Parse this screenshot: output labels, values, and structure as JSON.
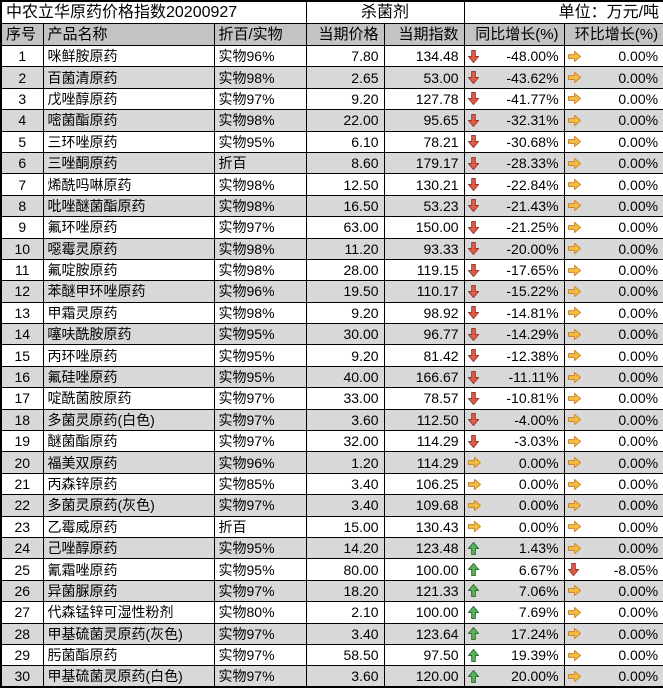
{
  "header": {
    "title": "中农立华原药价格指数20200927",
    "category": "杀菌剂",
    "unit": "单位：万元/吨"
  },
  "columns": {
    "seq": "序号",
    "name": "产品名称",
    "spec": "折百/实物",
    "price": "当期价格",
    "index": "当期指数",
    "yoy": "同比增长(%)",
    "mom": "环比增长(%)"
  },
  "icon_colors": {
    "up": {
      "fill": "#5BB05B",
      "stroke": "#2E6E33"
    },
    "down": {
      "fill": "#D95F4C",
      "stroke": "#9E352A"
    },
    "flat": {
      "fill": "#F2BE45",
      "stroke": "#C8862E"
    }
  },
  "icon_names": {
    "up": "up-arrow-icon",
    "down": "down-arrow-icon",
    "flat": "right-arrow-icon"
  },
  "rows": [
    {
      "seq": "1",
      "name": "咪鲜胺原药",
      "spec": "实物96%",
      "price": "7.80",
      "index": "134.48",
      "yoy_icon": "down",
      "yoy": "-48.00%",
      "mom_icon": "flat",
      "mom": "0.00%"
    },
    {
      "seq": "2",
      "name": "百菌清原药",
      "spec": "实物98%",
      "price": "2.65",
      "index": "53.00",
      "yoy_icon": "down",
      "yoy": "-43.62%",
      "mom_icon": "flat",
      "mom": "0.00%"
    },
    {
      "seq": "3",
      "name": "戊唑醇原药",
      "spec": "实物97%",
      "price": "9.20",
      "index": "127.78",
      "yoy_icon": "down",
      "yoy": "-41.77%",
      "mom_icon": "flat",
      "mom": "0.00%"
    },
    {
      "seq": "4",
      "name": "嘧菌酯原药",
      "spec": "实物98%",
      "price": "22.00",
      "index": "95.65",
      "yoy_icon": "down",
      "yoy": "-32.31%",
      "mom_icon": "flat",
      "mom": "0.00%"
    },
    {
      "seq": "5",
      "name": "三环唑原药",
      "spec": "实物95%",
      "price": "6.10",
      "index": "78.21",
      "yoy_icon": "down",
      "yoy": "-30.68%",
      "mom_icon": "flat",
      "mom": "0.00%"
    },
    {
      "seq": "6",
      "name": "三唑酮原药",
      "spec": "折百",
      "price": "8.60",
      "index": "179.17",
      "yoy_icon": "down",
      "yoy": "-28.33%",
      "mom_icon": "flat",
      "mom": "0.00%"
    },
    {
      "seq": "7",
      "name": "烯酰吗啉原药",
      "spec": "实物98%",
      "price": "12.50",
      "index": "130.21",
      "yoy_icon": "down",
      "yoy": "-22.84%",
      "mom_icon": "flat",
      "mom": "0.00%"
    },
    {
      "seq": "8",
      "name": "吡唑醚菌酯原药",
      "spec": "实物98%",
      "price": "16.50",
      "index": "53.23",
      "yoy_icon": "down",
      "yoy": "-21.43%",
      "mom_icon": "flat",
      "mom": "0.00%"
    },
    {
      "seq": "9",
      "name": "氟环唑原药",
      "spec": "实物97%",
      "price": "63.00",
      "index": "150.00",
      "yoy_icon": "down",
      "yoy": "-21.25%",
      "mom_icon": "flat",
      "mom": "0.00%"
    },
    {
      "seq": "10",
      "name": "噁霉灵原药",
      "spec": "实物98%",
      "price": "11.20",
      "index": "93.33",
      "yoy_icon": "down",
      "yoy": "-20.00%",
      "mom_icon": "flat",
      "mom": "0.00%"
    },
    {
      "seq": "11",
      "name": "氟啶胺原药",
      "spec": "实物98%",
      "price": "28.00",
      "index": "119.15",
      "yoy_icon": "down",
      "yoy": "-17.65%",
      "mom_icon": "flat",
      "mom": "0.00%"
    },
    {
      "seq": "12",
      "name": "苯醚甲环唑原药",
      "spec": "实物96%",
      "price": "19.50",
      "index": "110.17",
      "yoy_icon": "down",
      "yoy": "-15.22%",
      "mom_icon": "flat",
      "mom": "0.00%"
    },
    {
      "seq": "13",
      "name": "甲霜灵原药",
      "spec": "实物98%",
      "price": "9.20",
      "index": "98.92",
      "yoy_icon": "down",
      "yoy": "-14.81%",
      "mom_icon": "flat",
      "mom": "0.00%"
    },
    {
      "seq": "14",
      "name": "噻呋酰胺原药",
      "spec": "实物95%",
      "price": "30.00",
      "index": "96.77",
      "yoy_icon": "down",
      "yoy": "-14.29%",
      "mom_icon": "flat",
      "mom": "0.00%"
    },
    {
      "seq": "15",
      "name": "丙环唑原药",
      "spec": "实物95%",
      "price": "9.20",
      "index": "81.42",
      "yoy_icon": "down",
      "yoy": "-12.38%",
      "mom_icon": "flat",
      "mom": "0.00%"
    },
    {
      "seq": "16",
      "name": "氟硅唑原药",
      "spec": "实物95%",
      "price": "40.00",
      "index": "166.67",
      "yoy_icon": "down",
      "yoy": "-11.11%",
      "mom_icon": "flat",
      "mom": "0.00%"
    },
    {
      "seq": "17",
      "name": "啶酰菌胺原药",
      "spec": "实物97%",
      "price": "33.00",
      "index": "78.57",
      "yoy_icon": "down",
      "yoy": "-10.81%",
      "mom_icon": "flat",
      "mom": "0.00%"
    },
    {
      "seq": "18",
      "name": "多菌灵原药(白色)",
      "spec": "实物97%",
      "price": "3.60",
      "index": "112.50",
      "yoy_icon": "down",
      "yoy": "-4.00%",
      "mom_icon": "flat",
      "mom": "0.00%"
    },
    {
      "seq": "19",
      "name": "醚菌酯原药",
      "spec": "实物97%",
      "price": "32.00",
      "index": "114.29",
      "yoy_icon": "down",
      "yoy": "-3.03%",
      "mom_icon": "flat",
      "mom": "0.00%"
    },
    {
      "seq": "20",
      "name": "福美双原药",
      "spec": "实物96%",
      "price": "1.20",
      "index": "114.29",
      "yoy_icon": "flat",
      "yoy": "0.00%",
      "mom_icon": "flat",
      "mom": "0.00%"
    },
    {
      "seq": "21",
      "name": "丙森锌原药",
      "spec": "实物85%",
      "price": "3.40",
      "index": "106.25",
      "yoy_icon": "flat",
      "yoy": "0.00%",
      "mom_icon": "flat",
      "mom": "0.00%"
    },
    {
      "seq": "22",
      "name": "多菌灵原药(灰色)",
      "spec": "实物97%",
      "price": "3.40",
      "index": "109.68",
      "yoy_icon": "flat",
      "yoy": "0.00%",
      "mom_icon": "flat",
      "mom": "0.00%"
    },
    {
      "seq": "23",
      "name": "乙霉威原药",
      "spec": "折百",
      "price": "15.00",
      "index": "130.43",
      "yoy_icon": "flat",
      "yoy": "0.00%",
      "mom_icon": "flat",
      "mom": "0.00%"
    },
    {
      "seq": "24",
      "name": "己唑醇原药",
      "spec": "实物95%",
      "price": "14.20",
      "index": "123.48",
      "yoy_icon": "up",
      "yoy": "1.43%",
      "mom_icon": "flat",
      "mom": "0.00%"
    },
    {
      "seq": "25",
      "name": "氰霜唑原药",
      "spec": "实物95%",
      "price": "80.00",
      "index": "100.00",
      "yoy_icon": "up",
      "yoy": "6.67%",
      "mom_icon": "down",
      "mom": "-8.05%"
    },
    {
      "seq": "26",
      "name": "异菌脲原药",
      "spec": "实物97%",
      "price": "18.20",
      "index": "121.33",
      "yoy_icon": "up",
      "yoy": "7.06%",
      "mom_icon": "flat",
      "mom": "0.00%"
    },
    {
      "seq": "27",
      "name": "代森锰锌可湿性粉剂",
      "spec": "实物80%",
      "price": "2.10",
      "index": "100.00",
      "yoy_icon": "up",
      "yoy": "7.69%",
      "mom_icon": "flat",
      "mom": "0.00%"
    },
    {
      "seq": "28",
      "name": "甲基硫菌灵原药(灰色)",
      "spec": "实物97%",
      "price": "3.40",
      "index": "123.64",
      "yoy_icon": "up",
      "yoy": "17.24%",
      "mom_icon": "flat",
      "mom": "0.00%"
    },
    {
      "seq": "29",
      "name": "肟菌酯原药",
      "spec": "实物97%",
      "price": "58.50",
      "index": "97.50",
      "yoy_icon": "up",
      "yoy": "19.39%",
      "mom_icon": "flat",
      "mom": "0.00%"
    },
    {
      "seq": "30",
      "name": "甲基硫菌灵原药(白色)",
      "spec": "实物97%",
      "price": "3.60",
      "index": "120.00",
      "yoy_icon": "up",
      "yoy": "20.00%",
      "mom_icon": "flat",
      "mom": "0.00%"
    }
  ]
}
